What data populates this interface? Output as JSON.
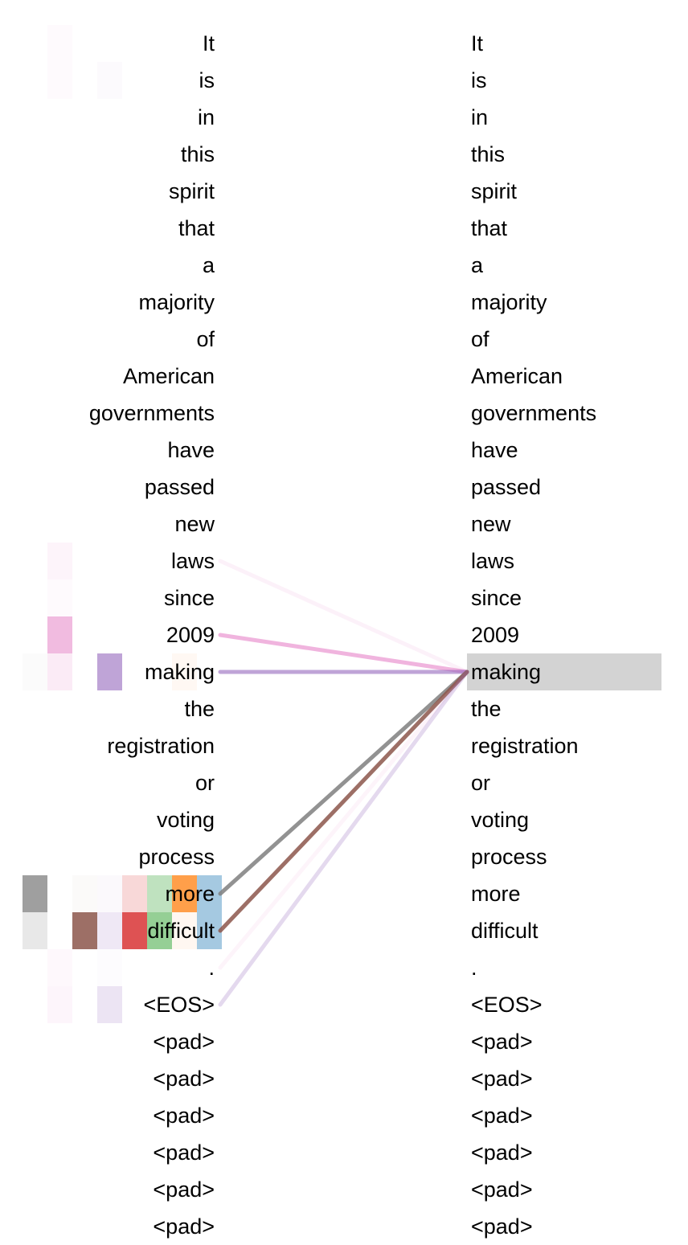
{
  "tokens": [
    "It",
    "is",
    "in",
    "this",
    "spirit",
    "that",
    "a",
    "majority",
    "of",
    "American",
    "governments",
    "have",
    "passed",
    "new",
    "laws",
    "since",
    "2009",
    "making",
    "the",
    "registration",
    "or",
    "voting",
    "process",
    "more",
    "difficult",
    ".",
    "<EOS>",
    "<pad>",
    "<pad>",
    "<pad>",
    "<pad>",
    "<pad>",
    "<pad>"
  ],
  "selected_token_index": 17,
  "head_colors": [
    "#7f7f7f",
    "#e377c2",
    "#8c564b",
    "#9467bd",
    "#d62728",
    "#2ca02c",
    "#ff7f0e",
    "#1f77b4"
  ],
  "attention_cells": [
    {
      "row": 0,
      "head": 1,
      "weight": 0.04
    },
    {
      "row": 1,
      "head": 1,
      "weight": 0.04
    },
    {
      "row": 1,
      "head": 3,
      "weight": 0.03
    },
    {
      "row": 14,
      "head": 1,
      "weight": 0.08
    },
    {
      "row": 15,
      "head": 1,
      "weight": 0.04
    },
    {
      "row": 16,
      "head": 1,
      "weight": 0.5
    },
    {
      "row": 17,
      "head": 0,
      "weight": 0.03
    },
    {
      "row": 17,
      "head": 1,
      "weight": 0.15
    },
    {
      "row": 17,
      "head": 3,
      "weight": 0.6
    },
    {
      "row": 17,
      "head": 6,
      "weight": 0.05
    },
    {
      "row": 23,
      "head": 0,
      "weight": 0.75
    },
    {
      "row": 23,
      "head": 2,
      "weight": 0.03
    },
    {
      "row": 23,
      "head": 3,
      "weight": 0.04
    },
    {
      "row": 23,
      "head": 4,
      "weight": 0.18
    },
    {
      "row": 23,
      "head": 5,
      "weight": 0.3
    },
    {
      "row": 23,
      "head": 6,
      "weight": 0.75
    },
    {
      "row": 23,
      "head": 7,
      "weight": 0.4
    },
    {
      "row": 24,
      "head": 0,
      "weight": 0.18
    },
    {
      "row": 24,
      "head": 2,
      "weight": 0.85
    },
    {
      "row": 24,
      "head": 3,
      "weight": 0.15
    },
    {
      "row": 24,
      "head": 4,
      "weight": 0.8
    },
    {
      "row": 24,
      "head": 5,
      "weight": 0.5
    },
    {
      "row": 24,
      "head": 6,
      "weight": 0.06
    },
    {
      "row": 24,
      "head": 7,
      "weight": 0.4
    },
    {
      "row": 25,
      "head": 1,
      "weight": 0.05
    },
    {
      "row": 25,
      "head": 3,
      "weight": 0.02
    },
    {
      "row": 26,
      "head": 1,
      "weight": 0.07
    },
    {
      "row": 26,
      "head": 3,
      "weight": 0.18
    }
  ],
  "links": [
    {
      "from": 14,
      "color": "#e377c2",
      "weight": 0.1
    },
    {
      "from": 16,
      "color": "#e377c2",
      "weight": 0.55
    },
    {
      "from": 17,
      "color": "#9467bd",
      "weight": 0.6
    },
    {
      "from": 23,
      "color": "#7f7f7f",
      "weight": 0.85
    },
    {
      "from": 24,
      "color": "#8c564b",
      "weight": 0.85
    },
    {
      "from": 25,
      "color": "#e377c2",
      "weight": 0.05
    },
    {
      "from": 26,
      "color": "#9467bd",
      "weight": 0.25
    }
  ]
}
